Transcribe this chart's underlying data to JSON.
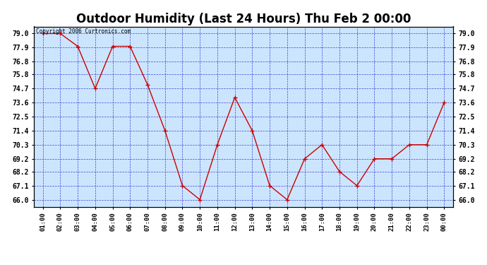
{
  "title": "Outdoor Humidity (Last 24 Hours) Thu Feb 2 00:00",
  "x_labels": [
    "01:00",
    "02:00",
    "03:00",
    "04:00",
    "05:00",
    "06:00",
    "07:00",
    "08:00",
    "09:00",
    "10:00",
    "11:00",
    "12:00",
    "13:00",
    "14:00",
    "15:00",
    "16:00",
    "17:00",
    "18:00",
    "19:00",
    "20:00",
    "21:00",
    "22:00",
    "23:00",
    "00:00"
  ],
  "x_values": [
    1,
    2,
    3,
    4,
    5,
    6,
    7,
    8,
    9,
    10,
    11,
    12,
    13,
    14,
    15,
    16,
    17,
    18,
    19,
    20,
    21,
    22,
    23,
    24
  ],
  "y_values": [
    79.0,
    79.0,
    78.0,
    74.7,
    78.0,
    78.0,
    75.0,
    71.4,
    67.1,
    66.0,
    70.3,
    74.0,
    71.4,
    67.1,
    66.0,
    69.2,
    70.3,
    68.2,
    67.1,
    69.2,
    69.2,
    70.3,
    70.3,
    73.6
  ],
  "y_ticks": [
    66.0,
    67.1,
    68.2,
    69.2,
    70.3,
    71.4,
    72.5,
    73.6,
    74.7,
    75.8,
    76.8,
    77.9,
    79.0
  ],
  "y_min": 65.45,
  "y_max": 79.55,
  "line_color": "#cc0000",
  "marker_color": "#cc0000",
  "bg_color": "#cce5ff",
  "grid_color": "#3333cc",
  "title_fontsize": 12,
  "copyright_text": "Copyright 2006 Curtronics.com"
}
